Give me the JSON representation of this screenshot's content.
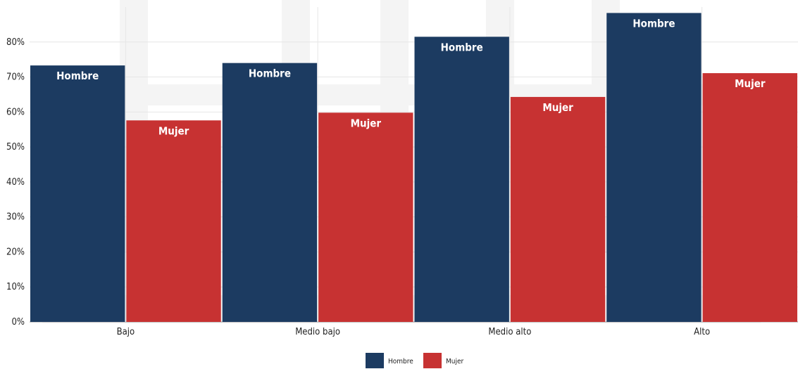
{
  "chart_data": {
    "type": "bar",
    "categories": [
      "Bajo",
      "Medio bajo",
      "Medio alto",
      "Alto"
    ],
    "series": [
      {
        "name": "Hombre",
        "color": "#1c3b61",
        "values": [
          73.3,
          74.0,
          81.5,
          88.3
        ]
      },
      {
        "name": "Mujer",
        "color": "#c73232",
        "values": [
          57.6,
          59.8,
          64.3,
          71.1
        ]
      }
    ],
    "y_ticks": [
      "0%",
      "10%",
      "20%",
      "30%",
      "40%",
      "50%",
      "60%",
      "70%",
      "80%"
    ],
    "ylim": [
      0,
      90
    ],
    "y_unit": "%",
    "grid": true,
    "legend": "bottom-center"
  }
}
